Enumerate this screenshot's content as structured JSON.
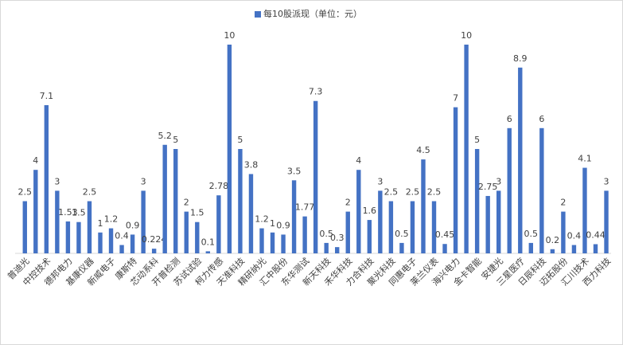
{
  "chart_data": {
    "type": "bar",
    "series": [
      {
        "name": "每10股派现（单位：元）",
        "color": "#4472c4",
        "values": [
          2.5,
          4,
          7.1,
          3,
          1.53,
          1.5,
          2.5,
          1,
          1.2,
          0.4,
          0.9,
          3,
          0.224,
          5.2,
          5,
          2,
          1.5,
          0.1,
          2.78,
          10,
          5,
          3.8,
          1.2,
          1,
          0.9,
          3.5,
          1.77,
          7.3,
          0.5,
          0.3,
          2,
          4,
          1.6,
          3,
          2.5,
          0.5,
          2.5,
          4.5,
          2.5,
          0.45,
          7,
          10,
          5,
          2.75,
          3,
          6,
          8.9,
          0.5,
          6,
          0.2,
          2,
          0.4,
          4.1,
          0.44,
          3
        ]
      }
    ],
    "categories": [
      "普迪光",
      null,
      "中控技术",
      null,
      "德邦电力",
      null,
      "基康仪器",
      null,
      "新威电子",
      null,
      "康斯特",
      null,
      "芯动系科",
      null,
      "开普检测",
      null,
      "苏试试验",
      null,
      "柯力传感",
      null,
      "天准科技",
      null,
      "精研纳光",
      null,
      "汇中股份",
      null,
      "东华测试",
      null,
      "新天科技",
      null,
      "禾华科技",
      null,
      "力合科技",
      null,
      "聚光科技",
      null,
      "同惠电子",
      null,
      "莱兰仪表",
      null,
      "海兴电力",
      null,
      "金卡智能",
      null,
      "安捷光",
      null,
      "三星医疗",
      null,
      "日辰科技",
      null,
      "迈拓股份",
      null,
      "汇川技术",
      null,
      "西力科技"
    ],
    "ylim": [
      0,
      10
    ],
    "legend": "top"
  }
}
